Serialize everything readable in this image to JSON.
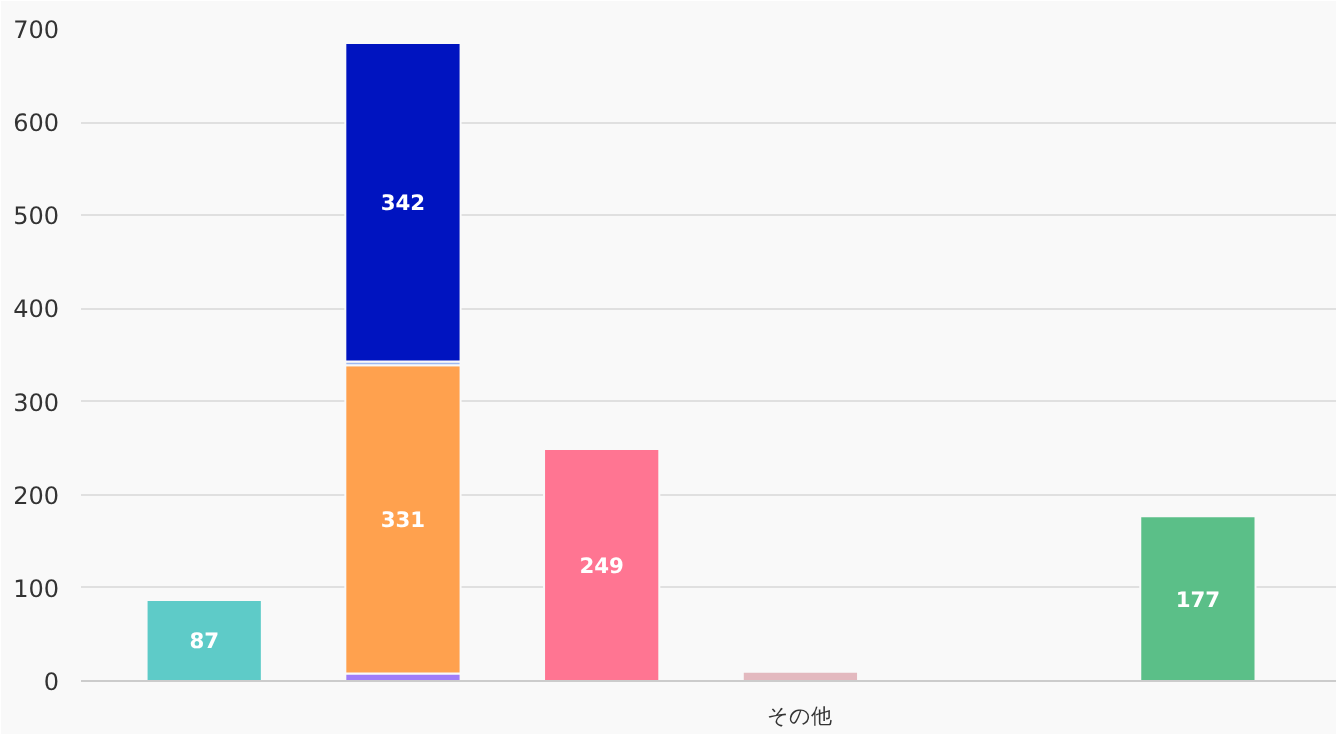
{
  "chart_data": {
    "type": "bar",
    "stacked": true,
    "categories": [
      null,
      null,
      null,
      "その他",
      null,
      null
    ],
    "ylim": [
      0,
      700
    ],
    "yticks": [
      0,
      100,
      200,
      300,
      400,
      500,
      600,
      700
    ],
    "grid": "y",
    "series": [
      {
        "color": "#5ecbc8",
        "values": [
          87,
          null,
          null,
          null,
          null,
          null
        ],
        "value_labels": [
          "87",
          null,
          null,
          null,
          null,
          null
        ]
      },
      {
        "color": "#a07cf8",
        "values": [
          null,
          8,
          null,
          null,
          null,
          null
        ],
        "value_labels": [
          null,
          null,
          null,
          null,
          null,
          null
        ]
      },
      {
        "color": "#ffa14e",
        "values": [
          null,
          331,
          null,
          null,
          null,
          null
        ],
        "value_labels": [
          null,
          "331",
          null,
          null,
          null,
          null
        ]
      },
      {
        "color": "#9fb8f0",
        "values": [
          null,
          4,
          null,
          null,
          null,
          null
        ],
        "value_labels": [
          null,
          null,
          null,
          null,
          null,
          null
        ]
      },
      {
        "color": "#0014c0",
        "values": [
          null,
          342,
          null,
          null,
          null,
          null
        ],
        "value_labels": [
          null,
          "342",
          null,
          null,
          null,
          null
        ]
      },
      {
        "color": "#ff7592",
        "values": [
          null,
          null,
          249,
          null,
          null,
          null
        ],
        "value_labels": [
          null,
          null,
          "249",
          null,
          null,
          null
        ]
      },
      {
        "color": "#e3b9bf",
        "values": [
          null,
          null,
          null,
          10,
          null,
          null
        ],
        "value_labels": [
          null,
          null,
          null,
          null,
          null,
          null
        ]
      },
      {
        "color": "#a9d2dc",
        "values": [
          null,
          null,
          null,
          null,
          2,
          null
        ],
        "value_labels": [
          null,
          null,
          null,
          null,
          null,
          null
        ]
      },
      {
        "color": "#5bbf88",
        "values": [
          null,
          null,
          null,
          null,
          null,
          177
        ],
        "value_labels": [
          null,
          null,
          null,
          null,
          null,
          "177"
        ]
      }
    ]
  }
}
